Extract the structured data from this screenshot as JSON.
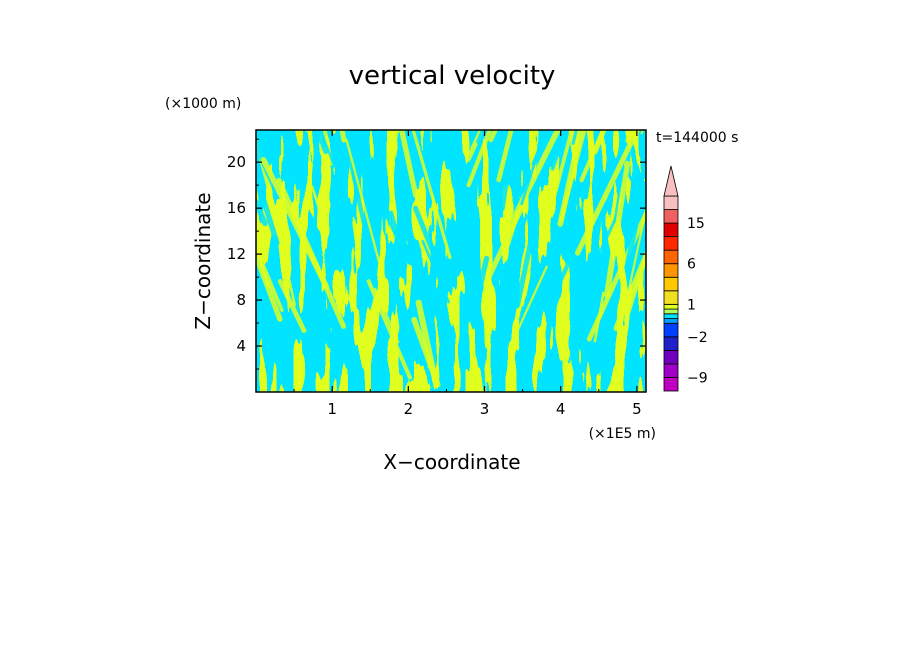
{
  "chart_data": {
    "type": "heatmap",
    "title": "vertical velocity",
    "xlabel": "X−coordinate",
    "ylabel": "Z−coordinate",
    "x_scale_label": "(×1E5 m)",
    "y_scale_label": "(×1000 m)",
    "time_label": "t=144000 s",
    "xlim": [
      0,
      5.12
    ],
    "ylim": [
      0,
      22.8
    ],
    "x_ticks": [
      1,
      2,
      3,
      4,
      5
    ],
    "x_tick_labels": [
      "1",
      "2",
      "3",
      "4",
      "5"
    ],
    "y_ticks": [
      4,
      8,
      12,
      16,
      20
    ],
    "y_tick_labels": [
      "4",
      "8",
      "12",
      "16",
      "20"
    ],
    "field_colors": {
      "updraft": "#e0ff1e",
      "downdraft": "#00e4ff"
    },
    "colorbar": {
      "levels": [
        -12,
        -9,
        -6,
        -4,
        -2,
        -1,
        -0.5,
        0,
        0.5,
        1,
        2,
        4,
        6,
        9,
        12,
        15,
        18,
        21
      ],
      "colors": [
        "#c000c0",
        "#a000c8",
        "#7000c0",
        "#2020c8",
        "#0040ff",
        "#00a0ff",
        "#00e4ff",
        "#b0ff60",
        "#e0ff1e",
        "#f0e020",
        "#ffc800",
        "#ff9600",
        "#ff6400",
        "#ff2800",
        "#e00000",
        "#f06060",
        "#f8c0c0"
      ],
      "extend": "max",
      "tick_labels": [
        {
          "value": -9,
          "label": "−9"
        },
        {
          "value": -2,
          "label": "−2"
        },
        {
          "value": 1,
          "label": "1"
        },
        {
          "value": 6,
          "label": "6"
        },
        {
          "value": 15,
          "label": "15"
        }
      ]
    }
  }
}
